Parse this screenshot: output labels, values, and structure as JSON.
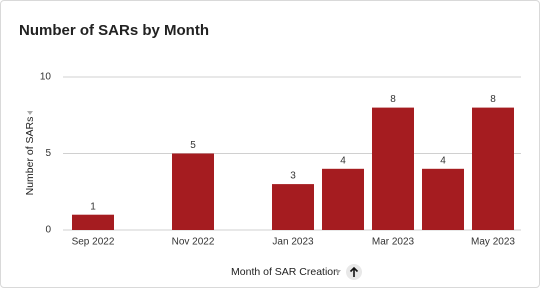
{
  "chart_data": {
    "type": "bar",
    "title": "Number of SARs by Month",
    "x_label": "Month of SAR Creation",
    "y_label": "Number of SARs",
    "categories": [
      "Sep 2022",
      null,
      "Nov 2022",
      null,
      "Jan 2023",
      null,
      "Mar 2023",
      null,
      "May 2023"
    ],
    "values": [
      1,
      null,
      5,
      null,
      3,
      4,
      8,
      4,
      8
    ],
    "color": "#a51c20",
    "ylim": [
      0,
      10
    ],
    "yticks": [
      0,
      5,
      10
    ],
    "grid": true
  }
}
